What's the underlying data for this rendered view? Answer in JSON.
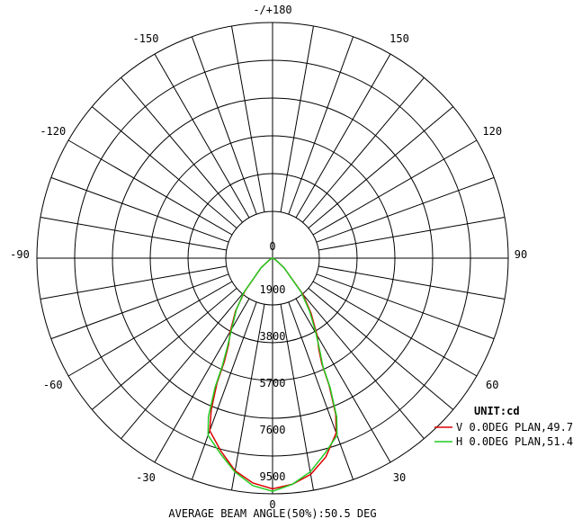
{
  "chart_data": {
    "type": "polar",
    "unit_label": "UNIT:cd",
    "footer": "AVERAGE BEAM ANGLE(50%):50.5 DEG",
    "angle_labels": [
      {
        "angle": 0,
        "text": "0"
      },
      {
        "angle": 30,
        "text": "30"
      },
      {
        "angle": 60,
        "text": "60"
      },
      {
        "angle": 90,
        "text": "90"
      },
      {
        "angle": 120,
        "text": "120"
      },
      {
        "angle": 150,
        "text": "150"
      },
      {
        "angle": 180,
        "text": "-/+180"
      },
      {
        "angle": -150,
        "text": "-150"
      },
      {
        "angle": -120,
        "text": "-120"
      },
      {
        "angle": -90,
        "text": "-90"
      },
      {
        "angle": -60,
        "text": "-60"
      },
      {
        "angle": -30,
        "text": "-30"
      }
    ],
    "radial_ticks": [
      "0",
      "1900",
      "3800",
      "5700",
      "7600",
      "9500"
    ],
    "radial_max": 9500,
    "angular_grid_step_deg": 10,
    "series": [
      {
        "name": "V 0.0DEG PLAN,49.7",
        "color": "#dd0000",
        "points": [
          [
            0,
            9300
          ],
          [
            5,
            9150
          ],
          [
            10,
            8850
          ],
          [
            15,
            8300
          ],
          [
            20,
            7500
          ],
          [
            22,
            6800
          ],
          [
            24,
            5600
          ],
          [
            25,
            4700
          ],
          [
            27,
            4100
          ],
          [
            30,
            3600
          ],
          [
            35,
            2700
          ],
          [
            40,
            1900
          ],
          [
            50,
            600
          ],
          [
            60,
            150
          ],
          [
            70,
            50
          ],
          [
            80,
            20
          ],
          [
            90,
            0
          ],
          [
            -5,
            9100
          ],
          [
            -10,
            8700
          ],
          [
            -15,
            8050
          ],
          [
            -20,
            7400
          ],
          [
            -22,
            6600
          ],
          [
            -24,
            5500
          ],
          [
            -25,
            4600
          ],
          [
            -27,
            3900
          ],
          [
            -30,
            3400
          ],
          [
            -35,
            2600
          ],
          [
            -40,
            1750
          ],
          [
            -50,
            600
          ],
          [
            -60,
            150
          ],
          [
            -70,
            50
          ],
          [
            -80,
            20
          ],
          [
            -90,
            0
          ]
        ]
      },
      {
        "name": "H 0.0DEG PLAN,51.4",
        "color": "#22cc22",
        "points": [
          [
            0,
            9400
          ],
          [
            5,
            9150
          ],
          [
            10,
            8750
          ],
          [
            15,
            8150
          ],
          [
            20,
            7600
          ],
          [
            22,
            6900
          ],
          [
            24,
            5700
          ],
          [
            25,
            4800
          ],
          [
            27,
            4200
          ],
          [
            30,
            3500
          ],
          [
            35,
            2600
          ],
          [
            40,
            1800
          ],
          [
            50,
            600
          ],
          [
            60,
            150
          ],
          [
            70,
            50
          ],
          [
            80,
            20
          ],
          [
            90,
            0
          ],
          [
            -5,
            9200
          ],
          [
            -10,
            8750
          ],
          [
            -15,
            8150
          ],
          [
            -20,
            7600
          ],
          [
            -22,
            6900
          ],
          [
            -24,
            5700
          ],
          [
            -25,
            4800
          ],
          [
            -27,
            4000
          ],
          [
            -30,
            3300
          ],
          [
            -35,
            2550
          ],
          [
            -40,
            1800
          ],
          [
            -50,
            600
          ],
          [
            -60,
            150
          ],
          [
            -70,
            50
          ],
          [
            -80,
            20
          ],
          [
            -90,
            0
          ]
        ]
      }
    ]
  }
}
